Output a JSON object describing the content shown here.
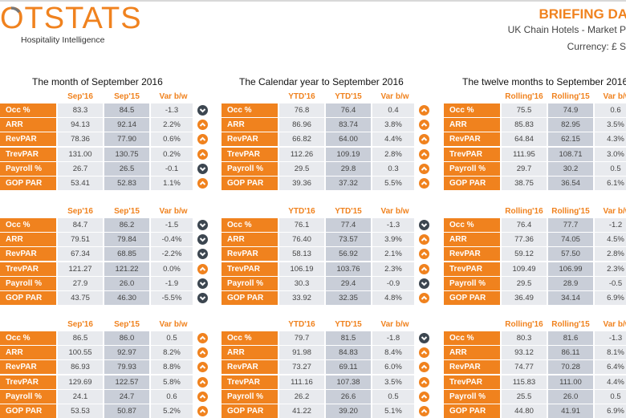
{
  "header": {
    "logo_text": "OTSTATS",
    "tagline": "Hospitality Intelligence",
    "title": "BRIEFING DA",
    "subtitle": "UK Chain Hotels - Market P",
    "currency": "Currency: £ S"
  },
  "colors": {
    "accent": "#f0821e",
    "down": "#3c4650",
    "cell_light": "#e8eaee",
    "cell_dark": "#c9ced8"
  },
  "sections": [
    {
      "title": "The month of September 2016",
      "headers": [
        "Sep'16",
        "Sep'15",
        "Var b/w"
      ]
    },
    {
      "title": "The Calendar year to September 2016",
      "headers": [
        "YTD'16",
        "YTD'15",
        "Var b/w"
      ]
    },
    {
      "title": "The twelve months to September 2016",
      "headers": [
        "Rolling'16",
        "Rolling'15",
        "Var b/w"
      ]
    }
  ],
  "tables": [
    [
      {
        "rows": [
          {
            "label": "Occ %",
            "a": "83.3",
            "b": "84.5",
            "var": "-1.3",
            "trend": "down"
          },
          {
            "label": "ARR",
            "a": "94.13",
            "b": "92.14",
            "var": "2.2%",
            "trend": "up"
          },
          {
            "label": "RevPAR",
            "a": "78.36",
            "b": "77.90",
            "var": "0.6%",
            "trend": "up"
          },
          {
            "label": "TrevPAR",
            "a": "131.00",
            "b": "130.75",
            "var": "0.2%",
            "trend": "up"
          },
          {
            "label": "Payroll %",
            "a": "26.7",
            "b": "26.5",
            "var": "-0.1",
            "trend": "down"
          },
          {
            "label": "GOP PAR",
            "a": "53.41",
            "b": "52.83",
            "var": "1.1%",
            "trend": "up"
          }
        ]
      },
      {
        "rows": [
          {
            "label": "Occ %",
            "a": "76.8",
            "b": "76.4",
            "var": "0.4",
            "trend": "up"
          },
          {
            "label": "ARR",
            "a": "86.96",
            "b": "83.74",
            "var": "3.8%",
            "trend": "up"
          },
          {
            "label": "RevPAR",
            "a": "66.82",
            "b": "64.00",
            "var": "4.4%",
            "trend": "up"
          },
          {
            "label": "TrevPAR",
            "a": "112.26",
            "b": "109.19",
            "var": "2.8%",
            "trend": "up"
          },
          {
            "label": "Payroll %",
            "a": "29.5",
            "b": "29.8",
            "var": "0.3",
            "trend": "up"
          },
          {
            "label": "GOP PAR",
            "a": "39.36",
            "b": "37.32",
            "var": "5.5%",
            "trend": "up"
          }
        ]
      },
      {
        "rows": [
          {
            "label": "Occ %",
            "a": "75.5",
            "b": "74.9",
            "var": "0.6"
          },
          {
            "label": "ARR",
            "a": "85.83",
            "b": "82.95",
            "var": "3.5%"
          },
          {
            "label": "RevPAR",
            "a": "64.84",
            "b": "62.15",
            "var": "4.3%"
          },
          {
            "label": "TrevPAR",
            "a": "111.95",
            "b": "108.71",
            "var": "3.0%"
          },
          {
            "label": "Payroll %",
            "a": "29.7",
            "b": "30.2",
            "var": "0.5"
          },
          {
            "label": "GOP PAR",
            "a": "38.75",
            "b": "36.54",
            "var": "6.1%"
          }
        ]
      }
    ],
    [
      {
        "rows": [
          {
            "label": "Occ %",
            "a": "84.7",
            "b": "86.2",
            "var": "-1.5",
            "trend": "down"
          },
          {
            "label": "ARR",
            "a": "79.51",
            "b": "79.84",
            "var": "-0.4%",
            "trend": "down"
          },
          {
            "label": "RevPAR",
            "a": "67.34",
            "b": "68.85",
            "var": "-2.2%",
            "trend": "down"
          },
          {
            "label": "TrevPAR",
            "a": "121.27",
            "b": "121.22",
            "var": "0.0%",
            "trend": "up"
          },
          {
            "label": "Payroll %",
            "a": "27.9",
            "b": "26.0",
            "var": "-1.9",
            "trend": "down"
          },
          {
            "label": "GOP PAR",
            "a": "43.75",
            "b": "46.30",
            "var": "-5.5%",
            "trend": "down"
          }
        ]
      },
      {
        "rows": [
          {
            "label": "Occ %",
            "a": "76.1",
            "b": "77.4",
            "var": "-1.3",
            "trend": "down"
          },
          {
            "label": "ARR",
            "a": "76.40",
            "b": "73.57",
            "var": "3.9%",
            "trend": "up"
          },
          {
            "label": "RevPAR",
            "a": "58.13",
            "b": "56.92",
            "var": "2.1%",
            "trend": "up"
          },
          {
            "label": "TrevPAR",
            "a": "106.19",
            "b": "103.76",
            "var": "2.3%",
            "trend": "up"
          },
          {
            "label": "Payroll %",
            "a": "30.3",
            "b": "29.4",
            "var": "-0.9",
            "trend": "down"
          },
          {
            "label": "GOP PAR",
            "a": "33.92",
            "b": "32.35",
            "var": "4.8%",
            "trend": "up"
          }
        ]
      },
      {
        "rows": [
          {
            "label": "Occ %",
            "a": "76.4",
            "b": "77.7",
            "var": "-1.2"
          },
          {
            "label": "ARR",
            "a": "77.36",
            "b": "74.05",
            "var": "4.5%"
          },
          {
            "label": "RevPAR",
            "a": "59.12",
            "b": "57.50",
            "var": "2.8%"
          },
          {
            "label": "TrevPAR",
            "a": "109.49",
            "b": "106.99",
            "var": "2.3%"
          },
          {
            "label": "Payroll %",
            "a": "29.5",
            "b": "28.9",
            "var": "-0.5"
          },
          {
            "label": "GOP PAR",
            "a": "36.49",
            "b": "34.14",
            "var": "6.9%"
          }
        ]
      }
    ],
    [
      {
        "rows": [
          {
            "label": "Occ %",
            "a": "86.5",
            "b": "86.0",
            "var": "0.5",
            "trend": "up"
          },
          {
            "label": "ARR",
            "a": "100.55",
            "b": "92.97",
            "var": "8.2%",
            "trend": "up"
          },
          {
            "label": "RevPAR",
            "a": "86.93",
            "b": "79.93",
            "var": "8.8%",
            "trend": "up"
          },
          {
            "label": "TrevPAR",
            "a": "129.69",
            "b": "122.57",
            "var": "5.8%",
            "trend": "up"
          },
          {
            "label": "Payroll %",
            "a": "24.1",
            "b": "24.7",
            "var": "0.6",
            "trend": "up"
          },
          {
            "label": "GOP PAR",
            "a": "53.53",
            "b": "50.87",
            "var": "5.2%",
            "trend": "up"
          }
        ]
      },
      {
        "rows": [
          {
            "label": "Occ %",
            "a": "79.7",
            "b": "81.5",
            "var": "-1.8",
            "trend": "down"
          },
          {
            "label": "ARR",
            "a": "91.98",
            "b": "84.83",
            "var": "8.4%",
            "trend": "up"
          },
          {
            "label": "RevPAR",
            "a": "73.27",
            "b": "69.11",
            "var": "6.0%",
            "trend": "up"
          },
          {
            "label": "TrevPAR",
            "a": "111.16",
            "b": "107.38",
            "var": "3.5%",
            "trend": "up"
          },
          {
            "label": "Payroll %",
            "a": "26.2",
            "b": "26.6",
            "var": "0.5",
            "trend": "up"
          },
          {
            "label": "GOP PAR",
            "a": "41.22",
            "b": "39.20",
            "var": "5.1%",
            "trend": "up"
          }
        ]
      },
      {
        "rows": [
          {
            "label": "Occ %",
            "a": "80.3",
            "b": "81.6",
            "var": "-1.3"
          },
          {
            "label": "ARR",
            "a": "93.12",
            "b": "86.11",
            "var": "8.1%"
          },
          {
            "label": "RevPAR",
            "a": "74.77",
            "b": "70.28",
            "var": "6.4%"
          },
          {
            "label": "TrevPAR",
            "a": "115.83",
            "b": "111.00",
            "var": "4.4%"
          },
          {
            "label": "Payroll %",
            "a": "25.5",
            "b": "26.0",
            "var": "0.5"
          },
          {
            "label": "GOP PAR",
            "a": "44.80",
            "b": "41.91",
            "var": "6.9%"
          }
        ]
      }
    ]
  ]
}
